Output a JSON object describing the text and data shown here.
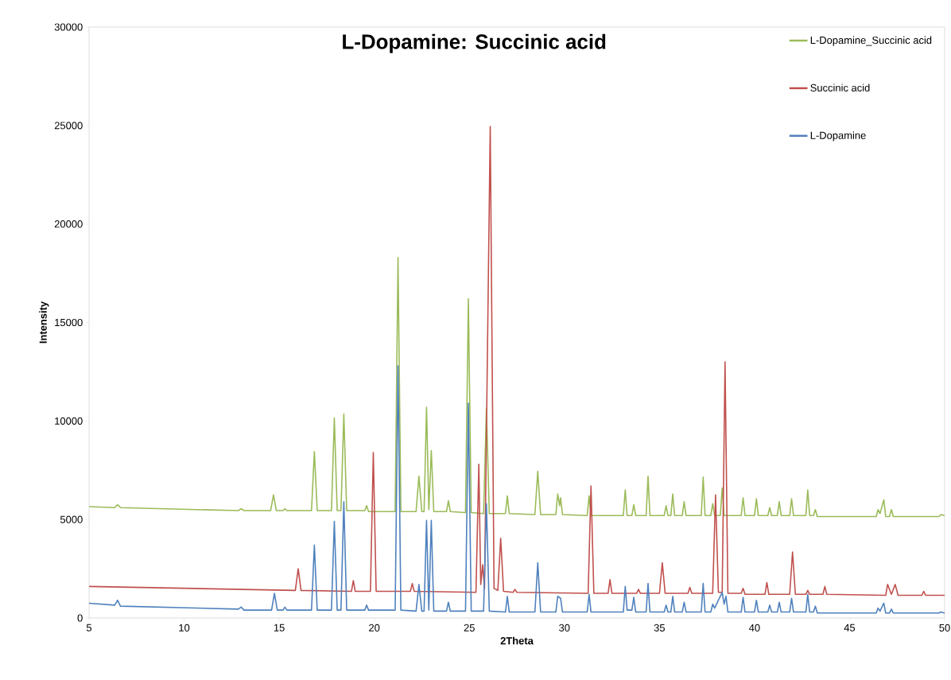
{
  "chart_data": {
    "type": "line",
    "title": "L-Dopamine: Succinic acid",
    "xlabel": "2Theta",
    "ylabel": "Intensity",
    "xlim": [
      5,
      50
    ],
    "xticks": [
      5,
      10,
      15,
      20,
      25,
      30,
      35,
      40,
      45,
      50
    ],
    "ylim": [
      0,
      30000
    ],
    "yticks": [
      0,
      5000,
      10000,
      15000,
      20000,
      25000,
      30000
    ],
    "grid": false,
    "legend": "top right",
    "series": [
      {
        "name": "L-Dopamine_Succinic acid",
        "color": "#9bbb59",
        "x": [
          5,
          6.35,
          6.5,
          6.65,
          12.85,
          13.0,
          13.15,
          14.55,
          14.7,
          14.85,
          15.2,
          15.3,
          15.4,
          16.7,
          16.85,
          17.0,
          17.75,
          17.9,
          18.05,
          18.25,
          18.4,
          18.55,
          19.5,
          19.6,
          19.7,
          21.1,
          21.25,
          21.4,
          22.2,
          22.35,
          22.5,
          22.62,
          22.75,
          22.87,
          23.0,
          23.13,
          23.8,
          23.9,
          24.0,
          24.8,
          24.95,
          25.1,
          25.75,
          25.9,
          26.05,
          26.9,
          27.0,
          27.1,
          28.45,
          28.6,
          28.75,
          29.55,
          29.65,
          29.75,
          29.8,
          29.9,
          31.2,
          31.3,
          31.4,
          33.1,
          33.2,
          33.3,
          33.55,
          33.65,
          33.75,
          34.3,
          34.4,
          34.5,
          35.25,
          35.35,
          35.45,
          35.6,
          35.7,
          35.8,
          36.2,
          36.3,
          36.4,
          37.2,
          37.3,
          37.4,
          37.7,
          37.8,
          37.9,
          38.2,
          38.3,
          38.4,
          39.3,
          39.4,
          39.5,
          40.0,
          40.1,
          40.2,
          40.7,
          40.8,
          40.9,
          41.2,
          41.3,
          41.4,
          41.85,
          41.95,
          42.05,
          42.7,
          42.8,
          42.9,
          43.1,
          43.2,
          43.3,
          46.4,
          46.5,
          46.6,
          46.8,
          46.9,
          47.1,
          47.2,
          47.3,
          49.7,
          49.8,
          50
        ],
        "values": [
          5650,
          5600,
          5750,
          5600,
          5450,
          5550,
          5450,
          5450,
          6250,
          5450,
          5450,
          5550,
          5450,
          5450,
          8450,
          5450,
          5450,
          10150,
          5450,
          5450,
          10350,
          5450,
          5450,
          5700,
          5400,
          5400,
          18300,
          5400,
          5400,
          7200,
          5400,
          5400,
          10700,
          5500,
          8500,
          5400,
          5400,
          5950,
          5400,
          5350,
          16200,
          5350,
          5300,
          10650,
          5300,
          5300,
          6200,
          5300,
          5250,
          7450,
          5250,
          5250,
          6300,
          5700,
          6100,
          5250,
          5200,
          6200,
          5200,
          5200,
          6500,
          5200,
          5200,
          5750,
          5200,
          5200,
          7200,
          5200,
          5200,
          5700,
          5200,
          5200,
          6300,
          5200,
          5200,
          5900,
          5200,
          5200,
          7150,
          5200,
          5200,
          5800,
          5200,
          5200,
          6600,
          5200,
          5200,
          6100,
          5200,
          5200,
          6050,
          5200,
          5200,
          5600,
          5200,
          5200,
          5900,
          5200,
          5200,
          6050,
          5200,
          5200,
          6500,
          5200,
          5200,
          5500,
          5150,
          5150,
          5500,
          5300,
          6000,
          5150,
          5150,
          5500,
          5150,
          5150,
          5250,
          5200
        ]
      },
      {
        "name": "Succinic acid",
        "color": "#c0504d",
        "x": [
          5,
          15.85,
          16.0,
          16.15,
          18.8,
          18.9,
          19.0,
          19.8,
          19.95,
          20.1,
          21.9,
          22.0,
          22.1,
          25.35,
          25.5,
          25.6,
          25.7,
          25.8,
          26.1,
          26.3,
          26.5,
          26.65,
          26.8,
          27.3,
          27.4,
          27.5,
          31.25,
          31.4,
          31.55,
          32.3,
          32.4,
          32.5,
          33.8,
          33.9,
          34.0,
          35.0,
          35.15,
          35.3,
          36.5,
          36.6,
          36.7,
          37.8,
          37.95,
          38.1,
          38.3,
          38.45,
          38.6,
          39.3,
          39.4,
          39.5,
          40.55,
          40.65,
          40.75,
          41.85,
          42.0,
          42.15,
          42.7,
          42.8,
          42.9,
          43.6,
          43.7,
          43.8,
          46.9,
          47.0,
          47.2,
          47.4,
          47.55,
          48.8,
          48.9,
          49.0,
          50
        ],
        "values": [
          1600,
          1400,
          2500,
          1400,
          1350,
          1900,
          1350,
          1350,
          8400,
          1350,
          1350,
          1750,
          1350,
          1300,
          7800,
          1700,
          2700,
          1500,
          24950,
          1500,
          1400,
          4050,
          1350,
          1300,
          1450,
          1300,
          1250,
          6700,
          1250,
          1250,
          1950,
          1250,
          1250,
          1450,
          1250,
          1250,
          2800,
          1250,
          1250,
          1550,
          1250,
          1250,
          6250,
          1300,
          1300,
          13000,
          1250,
          1250,
          1500,
          1200,
          1200,
          1800,
          1200,
          1200,
          3350,
          1200,
          1200,
          1400,
          1200,
          1200,
          1600,
          1200,
          1150,
          1700,
          1200,
          1700,
          1150,
          1150,
          1350,
          1150,
          1150
        ]
      },
      {
        "name": "L-Dopamine",
        "color": "#4f81bd",
        "x": [
          5,
          6.35,
          6.5,
          6.65,
          12.85,
          13.0,
          13.15,
          14.6,
          14.75,
          14.9,
          15.2,
          15.3,
          15.4,
          16.7,
          16.85,
          17.0,
          17.75,
          17.9,
          18.05,
          18.25,
          18.4,
          18.55,
          19.5,
          19.6,
          19.7,
          21.1,
          21.25,
          21.4,
          22.2,
          22.35,
          22.5,
          22.62,
          22.75,
          22.87,
          23.0,
          23.13,
          23.8,
          23.9,
          24.0,
          24.8,
          24.95,
          25.1,
          25.75,
          25.9,
          26.05,
          26.9,
          27.0,
          27.1,
          28.45,
          28.6,
          28.75,
          29.55,
          29.65,
          29.8,
          29.9,
          31.2,
          31.3,
          31.4,
          33.1,
          33.2,
          33.3,
          33.55,
          33.65,
          33.75,
          34.3,
          34.4,
          34.5,
          35.25,
          35.35,
          35.45,
          35.6,
          35.7,
          35.8,
          36.2,
          36.3,
          36.4,
          37.2,
          37.3,
          37.4,
          37.7,
          37.8,
          37.9,
          38.3,
          38.4,
          38.5,
          38.6,
          39.3,
          39.4,
          39.5,
          40.0,
          40.1,
          40.2,
          40.7,
          40.8,
          40.9,
          41.2,
          41.3,
          41.4,
          41.85,
          41.95,
          42.05,
          42.7,
          42.8,
          42.9,
          43.1,
          43.2,
          43.3,
          46.4,
          46.5,
          46.6,
          46.8,
          46.9,
          47.1,
          47.2,
          47.3,
          49.7,
          49.8,
          50
        ],
        "values": [
          750,
          650,
          900,
          600,
          450,
          550,
          400,
          400,
          1250,
          400,
          400,
          550,
          400,
          400,
          3700,
          400,
          400,
          4900,
          400,
          400,
          5900,
          400,
          400,
          650,
          400,
          400,
          12800,
          400,
          350,
          1700,
          350,
          350,
          4950,
          400,
          4950,
          350,
          350,
          800,
          350,
          350,
          10900,
          350,
          350,
          5800,
          350,
          300,
          1100,
          300,
          300,
          2800,
          300,
          300,
          1100,
          1000,
          300,
          300,
          1200,
          300,
          300,
          1600,
          400,
          400,
          1050,
          300,
          300,
          1750,
          300,
          300,
          650,
          300,
          300,
          1100,
          300,
          300,
          800,
          300,
          300,
          1750,
          300,
          300,
          700,
          500,
          1300,
          700,
          1100,
          300,
          300,
          1050,
          300,
          300,
          900,
          300,
          300,
          650,
          300,
          300,
          800,
          300,
          300,
          1000,
          300,
          300,
          1200,
          300,
          300,
          600,
          250,
          250,
          500,
          350,
          750,
          250,
          250,
          450,
          250,
          250,
          300,
          250
        ]
      }
    ]
  }
}
